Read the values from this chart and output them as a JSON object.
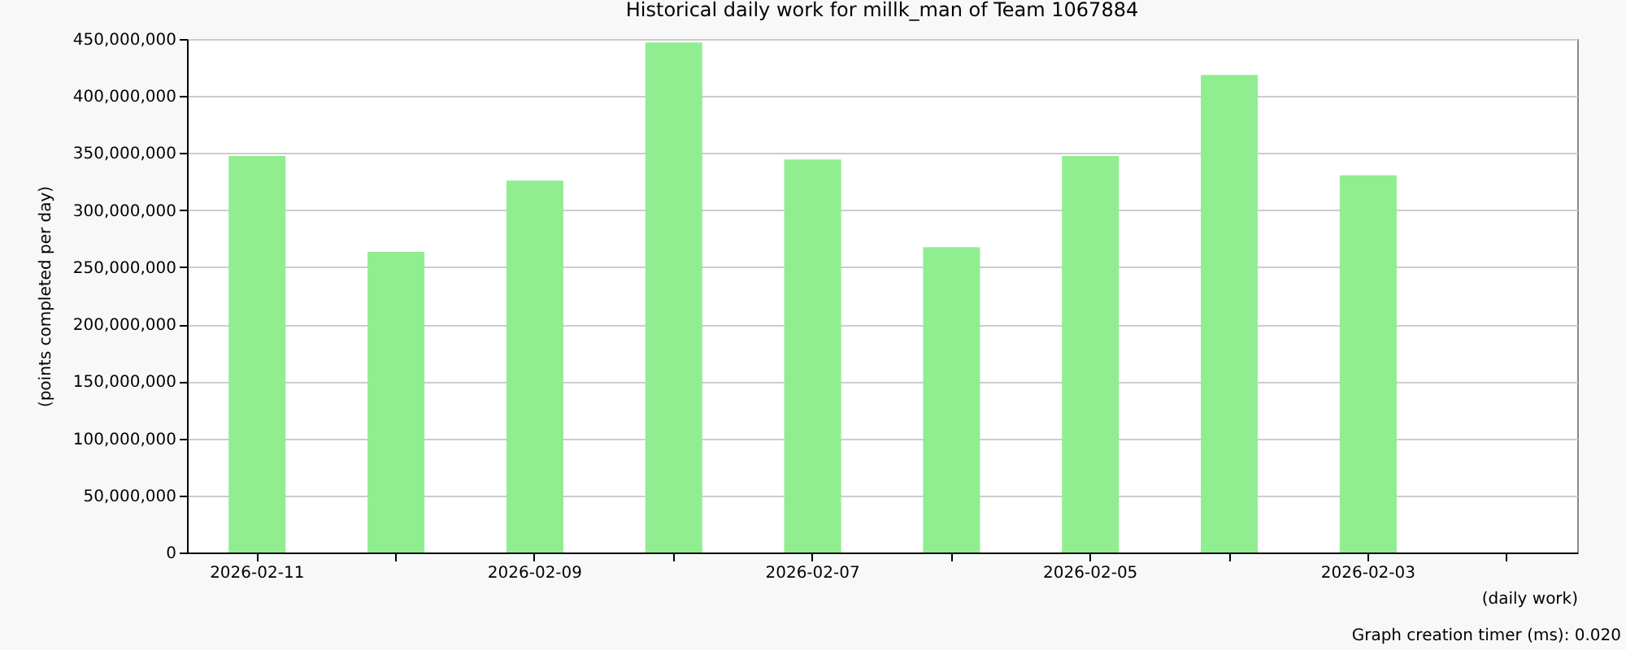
{
  "chart_data": {
    "type": "bar",
    "title": "Historical daily work for millk_man of Team 1067884",
    "xlabel": "(daily work)",
    "ylabel": "(points completed per day)",
    "categories": [
      "2026-02-11",
      null,
      "2026-02-09",
      null,
      "2026-02-07",
      null,
      "2026-02-05",
      null,
      "2026-02-03",
      null
    ],
    "values": [
      347500000,
      263500000,
      326000000,
      447000000,
      344500000,
      267500000,
      347500000,
      418500000,
      330500000,
      null
    ],
    "color": "#90ee90",
    "ylim": [
      0,
      450000000
    ],
    "yticks": [
      {
        "value": 0,
        "label": "0"
      },
      {
        "value": 50000000,
        "label": "50,000,000"
      },
      {
        "value": 100000000,
        "label": "100,000,000"
      },
      {
        "value": 150000000,
        "label": "150,000,000"
      },
      {
        "value": 200000000,
        "label": "200,000,000"
      },
      {
        "value": 250000000,
        "label": "250,000,000"
      },
      {
        "value": 300000000,
        "label": "300,000,000"
      },
      {
        "value": 350000000,
        "label": "350,000,000"
      },
      {
        "value": 400000000,
        "label": "400,000,000"
      },
      {
        "value": 450000000,
        "label": "450,000,000"
      }
    ],
    "grid": "y",
    "annotations": [
      "Graph creation timer (ms): 0.020"
    ]
  }
}
